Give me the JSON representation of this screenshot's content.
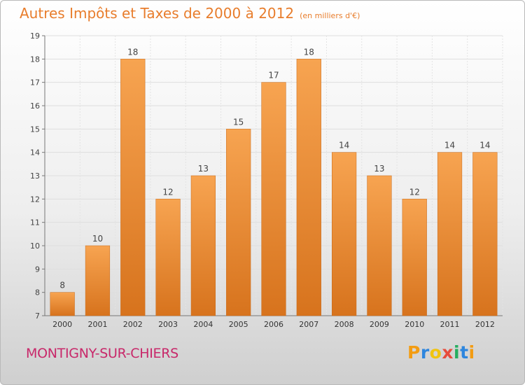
{
  "title": "Autres Impôts et Taxes de 2000 à 2012",
  "unit": "(en milliers d'€)",
  "place": "MONTIGNY-SUR-CHIERS",
  "logo": {
    "text": "Proxiti",
    "letters": [
      {
        "ch": "P",
        "color": "#f39c12"
      },
      {
        "ch": "r",
        "color": "#2e86de"
      },
      {
        "ch": "o",
        "color": "#f1c40f"
      },
      {
        "ch": "x",
        "color": "#e74c3c"
      },
      {
        "ch": "i",
        "color": "#27ae60"
      },
      {
        "ch": "t",
        "color": "#2e86de"
      },
      {
        "ch": "i",
        "color": "#f39c12"
      }
    ]
  },
  "chart_data": {
    "type": "bar",
    "categories": [
      "2000",
      "2001",
      "2002",
      "2003",
      "2004",
      "2005",
      "2006",
      "2007",
      "2008",
      "2009",
      "2010",
      "2011",
      "2012"
    ],
    "values": [
      8,
      10,
      18,
      12,
      13,
      15,
      17,
      18,
      14,
      13,
      12,
      14,
      14
    ],
    "ylim": [
      7,
      19
    ],
    "yticks": [
      7,
      8,
      9,
      10,
      11,
      12,
      13,
      14,
      15,
      16,
      17,
      18,
      19
    ],
    "grid": true,
    "bar_color": "#e88a30"
  }
}
